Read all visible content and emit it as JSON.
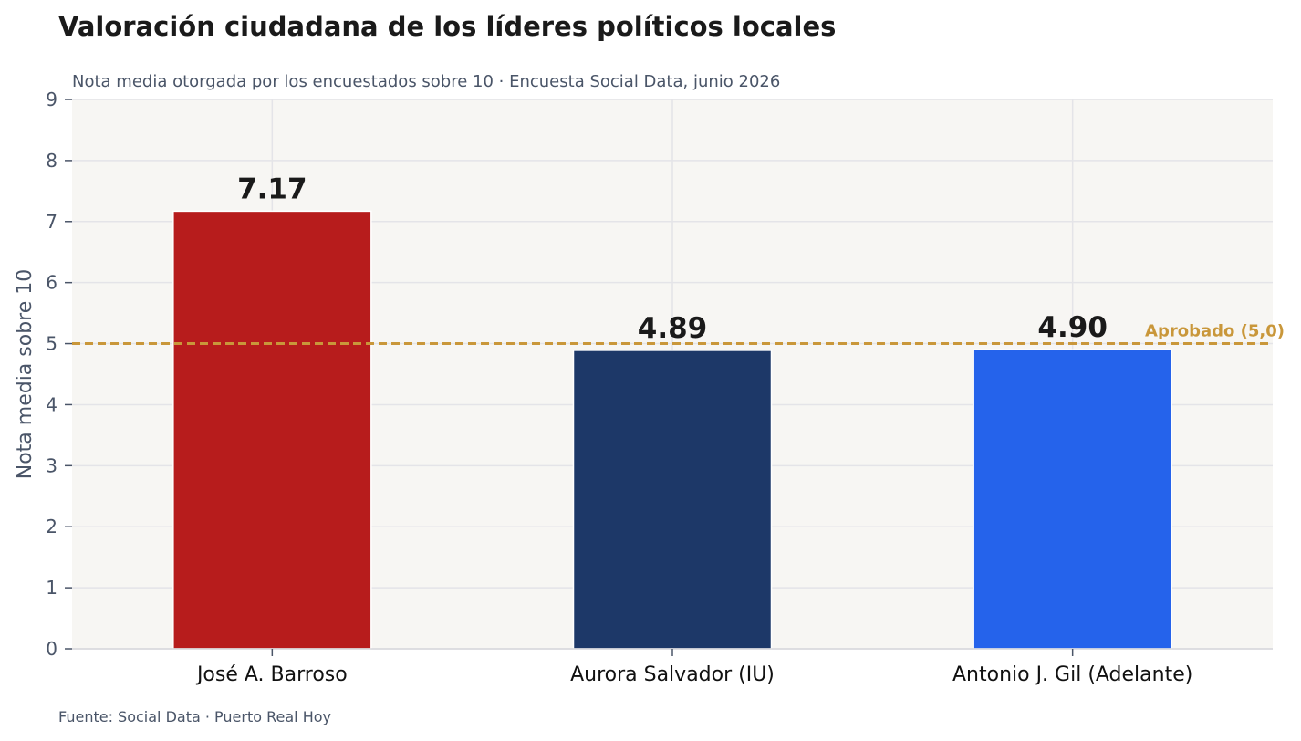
{
  "chart_data": {
    "type": "bar",
    "title": "Valoración ciudadana de los líderes políticos locales",
    "subtitle": "Nota media otorgada por los encuestados sobre 10 · Encuesta Social Data, junio 2026",
    "xlabel": "",
    "ylabel": "Nota media sobre 10",
    "categories": [
      "José A. Barroso",
      "Aurora Salvador (IU)",
      "Antonio J. Gil (Adelante)"
    ],
    "values": [
      7.17,
      4.89,
      4.9
    ],
    "value_labels": [
      "7.17",
      "4.89",
      "4.90"
    ],
    "bar_colors": [
      "#b71c1c",
      "#1d3868",
      "#2563eb"
    ],
    "ylim": [
      0,
      9
    ],
    "yticks": [
      0,
      1,
      2,
      3,
      4,
      5,
      6,
      7,
      8,
      9
    ],
    "grid": true,
    "reference_line": {
      "value": 5.0,
      "label": "Aprobado (5,0)",
      "color": "#c9973a"
    },
    "source": "Fuente: Social Data · Puerto Real Hoy"
  },
  "colors": {
    "plot_background": "#f7f6f3",
    "grid": "#e4e4e8",
    "text_muted": "#4a5568"
  }
}
